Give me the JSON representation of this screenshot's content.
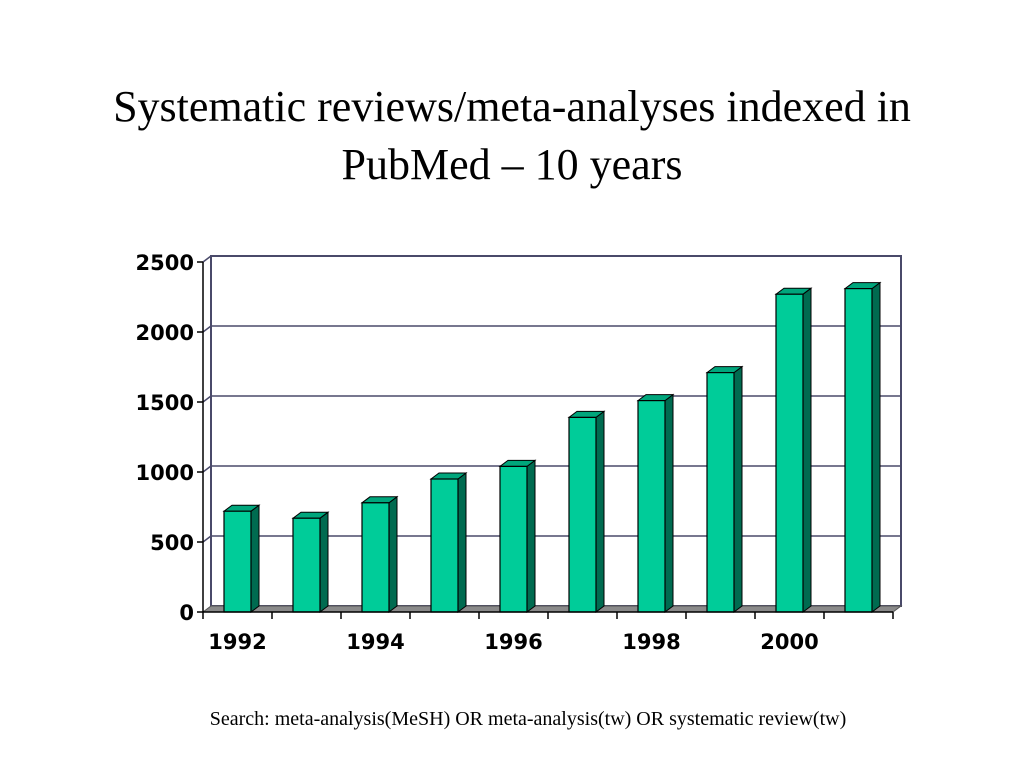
{
  "title": {
    "line1": "Systematic reviews/meta-analyses indexed in",
    "line2": "PubMed – 10 years"
  },
  "footnote": "Search: meta-analysis(MeSH) OR meta-analysis(tw) OR systematic review(tw)",
  "colors": {
    "bar_front": "#00cc99",
    "bar_side": "#006b50",
    "bar_top": "#00a67c",
    "floor": "#8a8a8a",
    "gridline": "#4a4a6a",
    "frame": "#4a4a6a"
  },
  "chart_data": {
    "type": "bar",
    "title": "Systematic reviews/meta-analyses indexed in PubMed – 10 years",
    "xlabel": "",
    "ylabel": "",
    "categories": [
      "1992",
      "1993",
      "1994",
      "1995",
      "1996",
      "1997",
      "1998",
      "1999",
      "2000",
      "2001"
    ],
    "x_tick_labels": [
      "1992",
      "",
      "1994",
      "",
      "1996",
      "",
      "1998",
      "",
      "2000",
      ""
    ],
    "values": [
      720,
      670,
      780,
      950,
      1040,
      1390,
      1510,
      1710,
      2270,
      2310
    ],
    "ylim": [
      0,
      2500
    ],
    "y_ticks": [
      0,
      500,
      1000,
      1500,
      2000,
      2500
    ],
    "grid": true,
    "legend": "none",
    "style": "3d"
  }
}
